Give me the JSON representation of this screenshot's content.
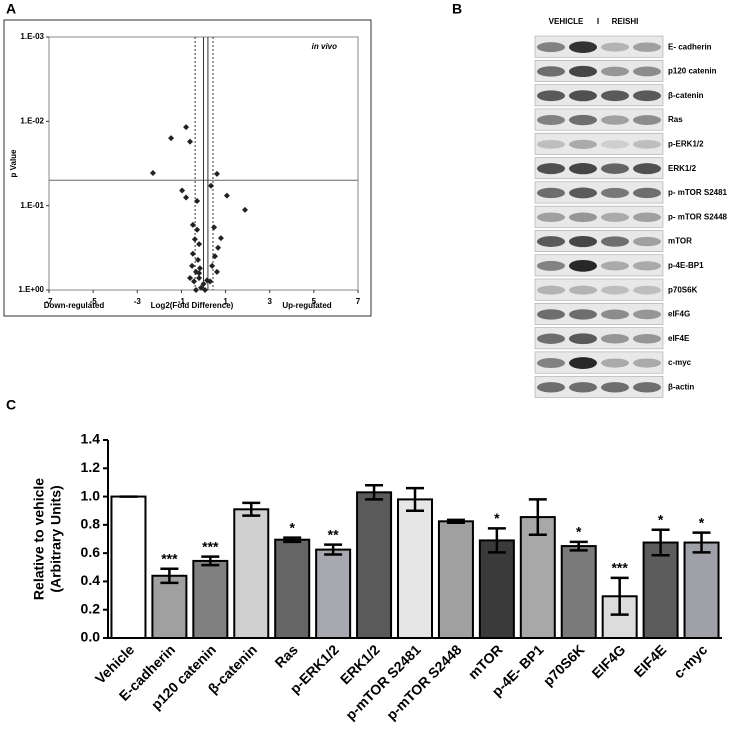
{
  "chart_data": [
    {
      "panel": "A",
      "type": "scatter",
      "annotation": "in vivo",
      "ylabel": "p Value",
      "xlabel": "Log2(Fold Difference)",
      "xlabel_left": "Down-regulated",
      "xlabel_right": "Up-regulated",
      "log_y": true,
      "color": "#222222",
      "xlim": [
        -7,
        7
      ],
      "xticks": [
        -7,
        -5,
        -3,
        -1,
        1,
        3,
        5,
        7
      ],
      "ylim": [
        1,
        0.001
      ],
      "yticks": [
        {
          "value": 0.001,
          "label": "1.E-03"
        },
        {
          "value": 0.01,
          "label": "1.E-02"
        },
        {
          "value": 0.1,
          "label": "1.E-01"
        },
        {
          "value": 1,
          "label": "1.E+00"
        }
      ],
      "hlines": [
        0.05
      ],
      "vlines": [
        {
          "value": -0.38,
          "style": "dashed"
        },
        {
          "value": 0,
          "style": "solid"
        },
        {
          "value": 0.2,
          "style": "solid"
        },
        {
          "value": 0.43,
          "style": "dashed"
        }
      ],
      "x": [
        -0.79,
        -1.47,
        -0.61,
        -2.29,
        0.61,
        -0.97,
        0.34,
        -0.79,
        1.06,
        1.88,
        -0.29,
        -0.48,
        -0.29,
        0.48,
        -0.39,
        -0.2,
        0.79,
        -0.48,
        -0.25,
        0.52,
        0.66,
        -0.52,
        -0.34,
        -0.16,
        0.39,
        0.61,
        -0.61,
        -0.43,
        -0.2,
        0,
        0.16,
        -0.11,
        -0.34,
        0.07,
        -0.2,
        0.3
      ],
      "values": [
        0.0117,
        0.0158,
        0.0174,
        0.041,
        0.042,
        0.066,
        0.058,
        0.08,
        0.076,
        0.112,
        0.088,
        0.169,
        0.193,
        0.181,
        0.25,
        0.286,
        0.243,
        0.372,
        0.439,
        0.398,
        0.316,
        0.518,
        0.61,
        0.553,
        0.518,
        0.61,
        0.72,
        0.79,
        0.72,
        0.85,
        0.77,
        0.94,
        1.0,
        1.0,
        0.63,
        0.79
      ]
    },
    {
      "panel": "C",
      "type": "bar",
      "ylabel": [
        "Relative to vehicle",
        "(Arbitrary Units)"
      ],
      "categories": [
        "Vehicle",
        "E-cadherin",
        "p120 catenin",
        "β-catenin",
        "Ras",
        "p-ERK1/2",
        "ERK1/2",
        "p-mTOR S2481",
        "p-mTOR S2448",
        "mTOR",
        "p-4E- BP1",
        "p70S6K",
        "EIF4G",
        "EIF4E",
        "c-myc"
      ],
      "values": [
        1.0,
        0.44,
        0.545,
        0.91,
        0.695,
        0.625,
        1.03,
        0.98,
        0.825,
        0.69,
        0.855,
        0.65,
        0.295,
        0.675,
        0.675
      ],
      "errors": [
        0,
        0.05,
        0.03,
        0.045,
        0.015,
        0.035,
        0.05,
        0.08,
        0.01,
        0.085,
        0.125,
        0.03,
        0.13,
        0.09,
        0.07
      ],
      "annotations": [
        null,
        "***",
        "***",
        null,
        "*",
        "**",
        null,
        null,
        null,
        "*",
        null,
        "*",
        "***",
        "*",
        "*"
      ],
      "colors": [
        "#ffffff",
        "#a0a0a0",
        "#808080",
        "#d0d0d0",
        "#666666",
        "#a8a8b0",
        "#5a5a5a",
        "#e6e6e6",
        "#a0a0a0",
        "#3a3a3a",
        "#a8a8a8",
        "#7a7a7a",
        "#dcdcdc",
        "#5c5c5c",
        "#a0a0a8"
      ],
      "ylim": [
        0,
        1.4
      ],
      "yticks": [
        {
          "value": 0,
          "label": "0.0"
        },
        0.2,
        0.4,
        0.6,
        0.8,
        {
          "value": 1,
          "label": "1.0"
        },
        1.2,
        1.4
      ]
    }
  ],
  "blot": {
    "panel": "B",
    "header": [
      "VEHICLE",
      "I",
      "REISHI"
    ],
    "rows": [
      "E- cadherin",
      "p120 catenin",
      "β-catenin",
      "Ras",
      "p-ERK1/2",
      "ERK1/2",
      "p- mTOR S2481",
      "p- mTOR S2448",
      "mTOR",
      "p-4E-BP1",
      "p70S6K",
      "eIF4G",
      "eIF4E",
      "c-myc",
      "β-actin"
    ]
  }
}
